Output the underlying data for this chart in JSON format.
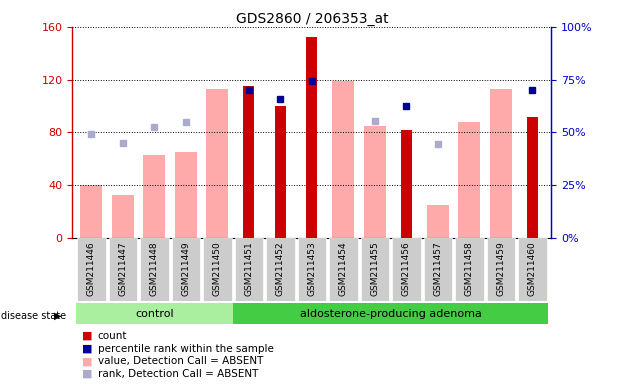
{
  "title": "GDS2860 / 206353_at",
  "samples": [
    "GSM211446",
    "GSM211447",
    "GSM211448",
    "GSM211449",
    "GSM211450",
    "GSM211451",
    "GSM211452",
    "GSM211453",
    "GSM211454",
    "GSM211455",
    "GSM211456",
    "GSM211457",
    "GSM211458",
    "GSM211459",
    "GSM211460"
  ],
  "count": [
    null,
    null,
    null,
    null,
    null,
    115,
    100,
    152,
    null,
    null,
    82,
    null,
    null,
    null,
    92
  ],
  "value_absent": [
    40,
    33,
    63,
    65,
    113,
    null,
    null,
    null,
    119,
    85,
    null,
    25,
    88,
    113,
    null
  ],
  "rank_absent_left": [
    79,
    72,
    84,
    88,
    null,
    null,
    null,
    null,
    null,
    89,
    null,
    71,
    null,
    null,
    null
  ],
  "percentile_rank_left": [
    null,
    null,
    null,
    null,
    null,
    112,
    105,
    119,
    null,
    null,
    100,
    null,
    null,
    null,
    112
  ],
  "ylim_left": [
    0,
    160
  ],
  "ylim_right": [
    0,
    100
  ],
  "yticks_left": [
    0,
    40,
    80,
    120,
    160
  ],
  "yticks_right": [
    0,
    25,
    50,
    75,
    100
  ],
  "ytick_labels_left": [
    "0",
    "40",
    "80",
    "120",
    "160"
  ],
  "ytick_labels_right": [
    "0%",
    "25%",
    "50%",
    "75%",
    "100%"
  ],
  "color_count": "#cc0000",
  "color_percentile": "#000099",
  "color_value_absent": "#ffaaaa",
  "color_rank_absent": "#aaaacc",
  "color_left_axis": "#cc0000",
  "color_right_axis": "#0000cc",
  "bg_plot": "#ffffff",
  "bg_xticklabels": "#cccccc",
  "bg_control": "#aaeea0",
  "bg_adenoma": "#44cc44",
  "n_control": 5,
  "n_total": 15,
  "bar_width": 0.5
}
